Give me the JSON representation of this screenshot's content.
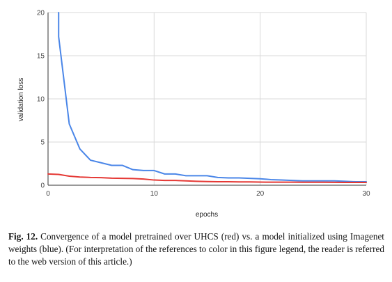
{
  "chart_data": {
    "type": "line",
    "title": "",
    "xlabel": "epochs",
    "ylabel": "validation loss",
    "xlim": [
      0,
      30
    ],
    "ylim": [
      0,
      20
    ],
    "xticks": [
      0,
      10,
      20,
      30
    ],
    "yticks": [
      0,
      5,
      10,
      15,
      20
    ],
    "grid": true,
    "legend": "none",
    "x": [
      0,
      1,
      2,
      3,
      4,
      5,
      6,
      7,
      8,
      9,
      10,
      11,
      12,
      13,
      14,
      15,
      16,
      17,
      18,
      19,
      20,
      21,
      22,
      23,
      24,
      25,
      26,
      27,
      28,
      29,
      30
    ],
    "series": [
      {
        "color": "#4a86e8",
        "x": [
          1,
          1,
          2,
          3,
          4,
          5,
          6,
          7,
          8,
          9,
          10,
          11,
          12,
          13,
          14,
          15,
          16,
          17,
          18,
          19,
          20,
          21,
          22,
          23,
          24,
          25,
          26,
          27,
          28,
          29,
          30
        ],
        "values": [
          20,
          17.2,
          7.1,
          4.2,
          2.9,
          2.6,
          2.3,
          2.3,
          1.8,
          1.7,
          1.7,
          1.3,
          1.3,
          1.1,
          1.1,
          1.1,
          0.9,
          0.85,
          0.85,
          0.8,
          0.75,
          0.65,
          0.6,
          0.55,
          0.5,
          0.5,
          0.5,
          0.5,
          0.45,
          0.4,
          0.4
        ]
      },
      {
        "color": "#e53935",
        "x": [
          0,
          1,
          2,
          3,
          4,
          5,
          6,
          7,
          8,
          9,
          10,
          11,
          12,
          13,
          14,
          15,
          16,
          17,
          18,
          19,
          20,
          21,
          22,
          23,
          24,
          25,
          26,
          27,
          28,
          29,
          30
        ],
        "values": [
          1.3,
          1.25,
          1.05,
          0.95,
          0.9,
          0.88,
          0.82,
          0.8,
          0.78,
          0.72,
          0.6,
          0.55,
          0.55,
          0.5,
          0.45,
          0.42,
          0.4,
          0.4,
          0.38,
          0.38,
          0.36,
          0.35,
          0.35,
          0.35,
          0.34,
          0.34,
          0.34,
          0.33,
          0.32,
          0.32,
          0.32
        ]
      }
    ]
  },
  "caption": {
    "label": "Fig. 12.",
    "text": "Convergence of a model pretrained over UHCS (red) vs. a model initialized using Imagenet weights (blue). (For interpretation of the references to color in this figure legend, the reader is referred to the web version of this article.)"
  }
}
